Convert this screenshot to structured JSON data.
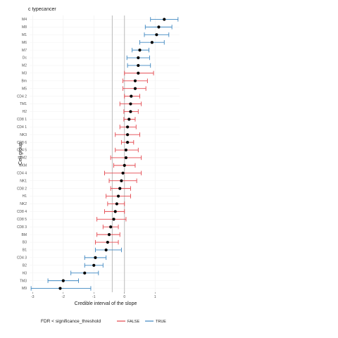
{
  "chart_data": {
    "type": "forest",
    "title": "c typecancer",
    "xlabel": "Credible interval of the slope",
    "ylabel": "Cell group",
    "xlim": [
      -3.1,
      1.8
    ],
    "xticks": [
      -3,
      -2,
      -1,
      0,
      1
    ],
    "xtick_labels": [
      "-3",
      "-2",
      "-1",
      "0",
      "1"
    ],
    "vlines": [
      -0.4,
      0
    ],
    "grid": true,
    "legend": {
      "title": "FDR < significance_threshold",
      "position": "bottom",
      "entries": [
        {
          "label": "FALSE",
          "color": "#E4474E"
        },
        {
          "label": "TRUE",
          "color": "#3E87C1"
        }
      ]
    },
    "colors": {
      "FALSE": "#E4474E",
      "TRUE": "#3E87C1",
      "point": "#000000",
      "vline": "#b3b3b3"
    },
    "rows": [
      {
        "group": "M4",
        "estimate": 1.3,
        "low": 0.85,
        "high": 1.75,
        "significant": "TRUE"
      },
      {
        "group": "M8",
        "estimate": 1.12,
        "low": 0.68,
        "high": 1.55,
        "significant": "TRUE"
      },
      {
        "group": "M1",
        "estimate": 1.05,
        "low": 0.65,
        "high": 1.45,
        "significant": "TRUE"
      },
      {
        "group": "M6",
        "estimate": 0.9,
        "low": 0.5,
        "high": 1.3,
        "significant": "TRUE"
      },
      {
        "group": "M7",
        "estimate": 0.5,
        "low": 0.25,
        "high": 0.8,
        "significant": "TRUE"
      },
      {
        "group": "Dc",
        "estimate": 0.45,
        "low": 0.08,
        "high": 0.82,
        "significant": "TRUE"
      },
      {
        "group": "M2",
        "estimate": 0.45,
        "low": 0.1,
        "high": 0.85,
        "significant": "TRUE"
      },
      {
        "group": "M3",
        "estimate": 0.45,
        "low": 0.0,
        "high": 0.95,
        "significant": "FALSE"
      },
      {
        "group": "Bm",
        "estimate": 0.35,
        "low": -0.05,
        "high": 0.75,
        "significant": "FALSE"
      },
      {
        "group": "M5",
        "estimate": 0.35,
        "low": -0.05,
        "high": 0.7,
        "significant": "FALSE"
      },
      {
        "group": "CD4 2",
        "estimate": 0.22,
        "low": 0.0,
        "high": 0.5,
        "significant": "FALSE"
      },
      {
        "group": "TM1",
        "estimate": 0.2,
        "low": -0.15,
        "high": 0.55,
        "significant": "FALSE"
      },
      {
        "group": "H2",
        "estimate": 0.2,
        "low": -0.02,
        "high": 0.45,
        "significant": "FALSE"
      },
      {
        "group": "CD8 1",
        "estimate": 0.15,
        "low": -0.02,
        "high": 0.35,
        "significant": "FALSE"
      },
      {
        "group": "CD4 1",
        "estimate": 0.1,
        "low": -0.15,
        "high": 0.38,
        "significant": "FALSE"
      },
      {
        "group": "NK3",
        "estimate": 0.1,
        "low": -0.3,
        "high": 0.5,
        "significant": "FALSE"
      },
      {
        "group": "CD8 6",
        "estimate": 0.1,
        "low": -0.1,
        "high": 0.3,
        "significant": "FALSE"
      },
      {
        "group": "CD4 5",
        "estimate": 0.05,
        "low": -0.3,
        "high": 0.45,
        "significant": "FALSE"
      },
      {
        "group": "TM2",
        "estimate": 0.05,
        "low": -0.45,
        "high": 0.55,
        "significant": "FALSE"
      },
      {
        "group": "NKM",
        "estimate": 0.0,
        "low": -0.35,
        "high": 0.35,
        "significant": "FALSE"
      },
      {
        "group": "CD4 4",
        "estimate": -0.05,
        "low": -0.65,
        "high": 0.55,
        "significant": "FALSE"
      },
      {
        "group": "NK1",
        "estimate": -0.1,
        "low": -0.5,
        "high": 0.4,
        "significant": "FALSE"
      },
      {
        "group": "CD8 2",
        "estimate": -0.15,
        "low": -0.45,
        "high": 0.2,
        "significant": "FALSE"
      },
      {
        "group": "H1",
        "estimate": -0.2,
        "low": -0.6,
        "high": 0.2,
        "significant": "FALSE"
      },
      {
        "group": "NK2",
        "estimate": -0.25,
        "low": -0.55,
        "high": 0.0,
        "significant": "FALSE"
      },
      {
        "group": "CD8 4",
        "estimate": -0.3,
        "low": -0.65,
        "high": 0.0,
        "significant": "FALSE"
      },
      {
        "group": "CD8 5",
        "estimate": -0.35,
        "low": -0.9,
        "high": 0.05,
        "significant": "FALSE"
      },
      {
        "group": "CD8 3",
        "estimate": -0.45,
        "low": -0.7,
        "high": -0.2,
        "significant": "FALSE"
      },
      {
        "group": "BM",
        "estimate": -0.5,
        "low": -0.9,
        "high": -0.15,
        "significant": "FALSE"
      },
      {
        "group": "B3",
        "estimate": -0.55,
        "low": -0.95,
        "high": -0.2,
        "significant": "FALSE"
      },
      {
        "group": "B1",
        "estimate": -0.6,
        "low": -0.95,
        "high": -0.1,
        "significant": "TRUE"
      },
      {
        "group": "CD4 3",
        "estimate": -0.95,
        "low": -1.3,
        "high": -0.6,
        "significant": "TRUE"
      },
      {
        "group": "B2",
        "estimate": -1.0,
        "low": -1.3,
        "high": -0.7,
        "significant": "TRUE"
      },
      {
        "group": "H3",
        "estimate": -1.3,
        "low": -1.75,
        "high": -0.85,
        "significant": "TRUE"
      },
      {
        "group": "TM3",
        "estimate": -2.0,
        "low": -2.5,
        "high": -1.5,
        "significant": "TRUE"
      },
      {
        "group": "M9",
        "estimate": -2.1,
        "low": -3.05,
        "high": -1.1,
        "significant": "TRUE"
      }
    ]
  }
}
